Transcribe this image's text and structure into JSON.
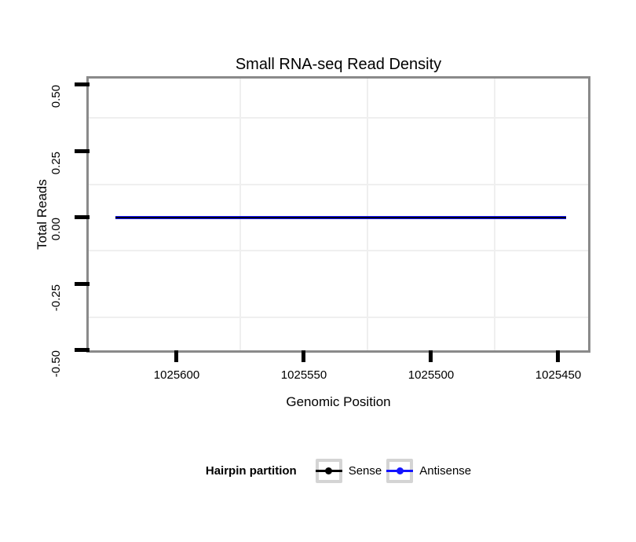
{
  "chart": {
    "title": "Small RNA-seq Read Density",
    "x_axis": {
      "label": "Genomic Position",
      "tick_labels": [
        "1025600",
        "1025550",
        "1025500",
        "1025450"
      ]
    },
    "y_axis": {
      "label": "Total Reads",
      "tick_labels": [
        "0.50",
        "0.25",
        "0.00",
        "-0.25",
        "-0.50"
      ]
    },
    "legend": {
      "title": "Hairpin partition",
      "entries": [
        {
          "label": "Sense",
          "color": "#000000"
        },
        {
          "label": "Antisense",
          "color": "#1414ff"
        }
      ]
    }
  },
  "chart_data": {
    "type": "line",
    "title": "Small RNA-seq Read Density",
    "xlabel": "Genomic Position",
    "ylabel": "Total Reads",
    "x_ticks": [
      1025600,
      1025550,
      1025500,
      1025450
    ],
    "x_axis_reversed": true,
    "xlim": [
      1025634,
      1025438
    ],
    "y_ticks": [
      0.5,
      0.25,
      0.0,
      -0.25,
      -0.5
    ],
    "ylim": [
      0.517,
      -0.523
    ],
    "minor_grid_x": [
      1025575,
      1025525,
      1025475
    ],
    "minor_grid_y": [
      0.375,
      0.125,
      -0.125,
      -0.375
    ],
    "grid": "minor-only",
    "legend_title": "Hairpin partition",
    "legend_position": "bottom",
    "series": [
      {
        "name": "Sense",
        "color": "#000000",
        "x": [
          1025624,
          1025447
        ],
        "y": [
          0,
          0
        ]
      },
      {
        "name": "Antisense",
        "color": "#1414ff",
        "x": [
          1025624,
          1025447
        ],
        "y": [
          0,
          0
        ]
      }
    ]
  },
  "colors": {
    "panel_border": "#8a8a8a",
    "minor_grid": "#efefef",
    "tick": "#000000",
    "legend_key_border": "#d4d4d4",
    "background": "#ffffff"
  }
}
